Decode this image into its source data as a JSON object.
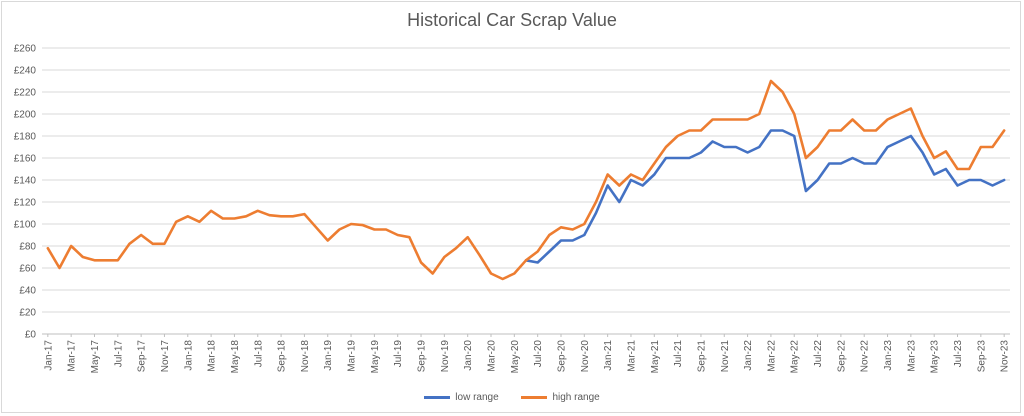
{
  "chart_data": {
    "type": "line",
    "title": "Historical Car Scrap Value",
    "xlabel": "",
    "ylabel": "",
    "ylim": [
      0,
      260
    ],
    "yticks": [
      "£0",
      "£20",
      "£40",
      "£60",
      "£80",
      "£100",
      "£120",
      "£140",
      "£160",
      "£180",
      "£200",
      "£220",
      "£240",
      "£260"
    ],
    "x": [
      "Jan-17",
      "Feb-17",
      "Mar-17",
      "Apr-17",
      "May-17",
      "Jun-17",
      "Jul-17",
      "Aug-17",
      "Sep-17",
      "Oct-17",
      "Nov-17",
      "Dec-17",
      "Jan-18",
      "Feb-18",
      "Mar-18",
      "Apr-18",
      "May-18",
      "Jun-18",
      "Jul-18",
      "Aug-18",
      "Sep-18",
      "Oct-18",
      "Nov-18",
      "Dec-18",
      "Jan-19",
      "Feb-19",
      "Mar-19",
      "Apr-19",
      "May-19",
      "Jun-19",
      "Jul-19",
      "Aug-19",
      "Sep-19",
      "Oct-19",
      "Nov-19",
      "Dec-19",
      "Jan-20",
      "Feb-20",
      "Mar-20",
      "Apr-20",
      "May-20",
      "Jun-20",
      "Jul-20",
      "Aug-20",
      "Sep-20",
      "Oct-20",
      "Nov-20",
      "Dec-20",
      "Jan-21",
      "Feb-21",
      "Mar-21",
      "Apr-21",
      "May-21",
      "Jun-21",
      "Jul-21",
      "Aug-21",
      "Sep-21",
      "Oct-21",
      "Nov-21",
      "Dec-21",
      "Jan-22",
      "Feb-22",
      "Mar-22",
      "Apr-22",
      "May-22",
      "Jun-22",
      "Jul-22",
      "Aug-22",
      "Sep-22",
      "Oct-22",
      "Nov-22",
      "Dec-22",
      "Jan-23",
      "Feb-23",
      "Mar-23",
      "Apr-23",
      "May-23",
      "Jun-23",
      "Jul-23",
      "Aug-23",
      "Sep-23",
      "Oct-23",
      "Nov-23"
    ],
    "xtick_labels": [
      "Jan-17",
      "Mar-17",
      "May-17",
      "Jul-17",
      "Sep-17",
      "Nov-17",
      "Jan-18",
      "Mar-18",
      "May-18",
      "Jul-18",
      "Sep-18",
      "Nov-18",
      "Jan-19",
      "Mar-19",
      "May-19",
      "Jul-19",
      "Sep-19",
      "Nov-19",
      "Jan-20",
      "Mar-20",
      "May-20",
      "Jul-20",
      "Sep-20",
      "Nov-20",
      "Jan-21",
      "Mar-21",
      "May-21",
      "Jul-21",
      "Sep-21",
      "Nov-21",
      "Jan-22",
      "Mar-22",
      "May-22",
      "Jul-22",
      "Sep-22",
      "Nov-22",
      "Jan-23",
      "Mar-23",
      "May-23",
      "Jul-23",
      "Sep-23",
      "Nov-23"
    ],
    "series": [
      {
        "name": "low range",
        "color": "#4472c4",
        "values": [
          null,
          null,
          null,
          null,
          null,
          null,
          null,
          null,
          null,
          null,
          null,
          null,
          null,
          null,
          null,
          null,
          null,
          null,
          null,
          null,
          null,
          null,
          null,
          null,
          null,
          null,
          null,
          null,
          null,
          null,
          null,
          null,
          null,
          null,
          null,
          null,
          null,
          null,
          null,
          null,
          null,
          67,
          65,
          75,
          85,
          85,
          90,
          110,
          135,
          120,
          140,
          135,
          145,
          160,
          160,
          160,
          165,
          175,
          170,
          170,
          165,
          170,
          185,
          185,
          180,
          130,
          140,
          155,
          155,
          160,
          155,
          155,
          170,
          175,
          180,
          165,
          145,
          150,
          135,
          140,
          140,
          135,
          140
        ]
      },
      {
        "name": "high range",
        "color": "#ed7d31",
        "values": [
          78,
          60,
          80,
          70,
          67,
          67,
          67,
          82,
          90,
          82,
          82,
          102,
          107,
          102,
          112,
          105,
          105,
          107,
          112,
          108,
          107,
          107,
          109,
          97,
          85,
          95,
          100,
          99,
          95,
          95,
          90,
          88,
          65,
          55,
          70,
          78,
          88,
          72,
          55,
          50,
          55,
          67,
          75,
          90,
          97,
          95,
          100,
          120,
          145,
          135,
          145,
          140,
          155,
          170,
          180,
          185,
          185,
          195,
          195,
          195,
          195,
          200,
          230,
          220,
          200,
          160,
          170,
          185,
          185,
          195,
          185,
          185,
          195,
          200,
          205,
          180,
          160,
          166,
          150,
          150,
          170,
          170,
          185
        ]
      }
    ],
    "grid": true,
    "legend": "bottom"
  }
}
